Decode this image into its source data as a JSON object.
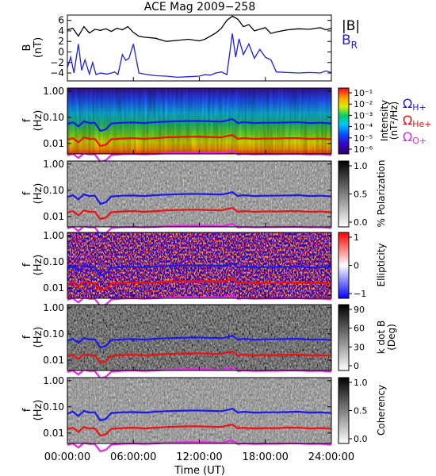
{
  "title": "ACE Mag 2009−258",
  "colors": {
    "B": "#000000",
    "BR": "#1f1fe0",
    "H": "#1a1aee",
    "He": "#ee1111",
    "O": "#ee22ee"
  },
  "legend": {
    "B_label": "|B|",
    "BR_main": "B",
    "BR_sub": "R",
    "omega": "Ω",
    "H_sub": "H+",
    "He_sub": "He+",
    "O_sub": "O+"
  },
  "x_axis": {
    "label": "Time (UT)",
    "ticks": [
      "00:00:00",
      "06:00:00",
      "12:00:00",
      "18:00:00",
      "24:00:00"
    ]
  },
  "panel1": {
    "ylabel_main": "B",
    "ylabel_unit": "(nT)",
    "yticks": [
      "6",
      "4",
      "2",
      "0",
      "−2",
      "−4"
    ]
  },
  "freq_panels": {
    "ylabel_main": "f",
    "ylabel_unit": "(Hz)",
    "yticks": [
      "1.00",
      "0.10",
      "0.01"
    ]
  },
  "colorbars": {
    "intensity": {
      "title": "Intensity",
      "unit": "(nT²/Hz)",
      "ticks": [
        "10⁻¹",
        "10⁻²",
        "10⁻³",
        "10⁻⁴",
        "10⁻⁵",
        "10⁻⁶"
      ]
    },
    "polarization": {
      "title": "% Polarization",
      "ticks": [
        "1.0",
        "0.5",
        "0.0"
      ]
    },
    "ellipticity": {
      "title": "Ellipticity",
      "ticks": [
        "1",
        "0",
        "−1"
      ]
    },
    "kdotb": {
      "title": "k dot B",
      "unit": "(Deg)",
      "ticks": [
        "90",
        "60",
        "30",
        "0"
      ]
    },
    "coherency": {
      "title": "Coherency",
      "ticks": [
        "1.0",
        "0.5",
        "0.0"
      ]
    }
  },
  "chart_data": {
    "type": "line",
    "x_unit": "hours UT",
    "xlim": [
      0,
      24
    ],
    "panel1": {
      "ylim": [
        -5.5,
        7
      ],
      "series": [
        {
          "name": "|B|",
          "x": [
            0,
            0.5,
            1,
            1.5,
            2,
            2.5,
            3,
            3.5,
            4,
            4.5,
            5,
            5.5,
            6,
            6.5,
            7,
            8,
            9,
            10,
            11,
            12,
            12.5,
            13,
            13.5,
            14,
            14.5,
            15,
            15.5,
            16,
            16.5,
            17,
            17.5,
            18,
            18.5,
            19,
            20,
            21,
            22,
            23,
            23.5,
            24
          ],
          "y": [
            4.2,
            4.5,
            3.0,
            4.8,
            3.6,
            4.3,
            4.1,
            4.4,
            3.9,
            4.5,
            4.2,
            4.8,
            3.7,
            3.0,
            2.8,
            2.6,
            2.0,
            2.2,
            2.4,
            2.1,
            2.4,
            3.0,
            3.6,
            4.5,
            6.0,
            6.8,
            6.2,
            4.8,
            5.2,
            4.0,
            4.3,
            4.6,
            3.5,
            3.8,
            4.2,
            4.4,
            4.3,
            4.6,
            4.2,
            4.5
          ]
        },
        {
          "name": "B_R",
          "x": [
            0,
            0.3,
            0.6,
            1,
            1.3,
            1.6,
            2,
            2.3,
            2.6,
            3,
            3.3,
            3.6,
            4,
            4.3,
            4.6,
            5,
            5.3,
            5.6,
            6,
            6.5,
            7,
            8,
            9,
            10,
            11,
            12,
            12.5,
            13,
            13.5,
            14,
            14.5,
            15,
            15.3,
            15.6,
            16,
            16.5,
            17,
            17.5,
            18,
            18.5,
            19,
            20,
            21,
            22,
            23,
            23.5,
            24
          ],
          "y": [
            -3.0,
            -1.0,
            -4.0,
            1.5,
            -3.5,
            -1.5,
            -4.2,
            -2.0,
            -4.3,
            -4.0,
            -4.1,
            -4.2,
            -4.0,
            -3.8,
            -4.3,
            -0.5,
            -1.6,
            -1.2,
            1.5,
            -4.0,
            -4.2,
            -4.5,
            -4.6,
            -4.8,
            -4.7,
            -4.6,
            -4.3,
            -4.4,
            -4.0,
            -3.8,
            -4.3,
            3.5,
            -1.0,
            2.5,
            -0.5,
            1.5,
            -1.2,
            0.5,
            -1.0,
            -1.5,
            -3.8,
            -3.9,
            -4.0,
            -3.9,
            -4.0,
            -3.6,
            -3.9
          ]
        }
      ]
    },
    "freq_panels": {
      "yscale": "log",
      "ylim": [
        0.004,
        1.3
      ],
      "series": [
        {
          "name": "ΩH+",
          "x": [
            0,
            0.5,
            1,
            1.5,
            2,
            2.5,
            3,
            3.5,
            4,
            5,
            6,
            7,
            8,
            9,
            10,
            11,
            12,
            13,
            14,
            14.5,
            15,
            15.5,
            16,
            17,
            18,
            19,
            20,
            21,
            22,
            23,
            24
          ],
          "y": [
            0.055,
            0.065,
            0.045,
            0.07,
            0.06,
            0.062,
            0.03,
            0.035,
            0.058,
            0.062,
            0.063,
            0.06,
            0.065,
            0.068,
            0.07,
            0.072,
            0.072,
            0.07,
            0.068,
            0.075,
            0.085,
            0.06,
            0.065,
            0.06,
            0.062,
            0.062,
            0.063,
            0.065,
            0.06,
            0.062,
            0.058
          ]
        },
        {
          "name": "ΩHe+",
          "x": [
            0,
            0.5,
            1,
            1.5,
            2,
            2.5,
            3,
            3.5,
            4,
            5,
            6,
            7,
            8,
            9,
            10,
            11,
            12,
            13,
            14,
            14.5,
            15,
            15.5,
            16,
            17,
            18,
            19,
            20,
            21,
            22,
            23,
            24
          ],
          "y": [
            0.014,
            0.016,
            0.011,
            0.017,
            0.015,
            0.015,
            0.008,
            0.009,
            0.0145,
            0.0155,
            0.016,
            0.015,
            0.016,
            0.017,
            0.0175,
            0.018,
            0.018,
            0.0175,
            0.017,
            0.019,
            0.021,
            0.015,
            0.016,
            0.015,
            0.0155,
            0.0155,
            0.016,
            0.016,
            0.015,
            0.0155,
            0.0145
          ]
        },
        {
          "name": "ΩO+",
          "x": [
            0,
            0.5,
            1,
            1.5,
            2,
            2.5,
            3,
            3.5,
            4,
            5,
            6,
            7,
            8,
            9,
            10,
            11,
            12,
            13,
            14,
            14.5,
            15,
            15.5,
            16,
            17,
            18,
            19,
            20,
            21,
            22,
            23,
            24
          ],
          "y": [
            0.0035,
            0.004,
            0.0028,
            0.0042,
            0.0038,
            0.0038,
            0.002,
            0.0023,
            0.0036,
            0.0039,
            0.004,
            0.0038,
            0.004,
            0.0042,
            0.0044,
            0.0045,
            0.0045,
            0.0044,
            0.0042,
            0.0047,
            0.0053,
            0.0038,
            0.004,
            0.0038,
            0.0039,
            0.0039,
            0.004,
            0.004,
            0.0038,
            0.0039,
            0.0036
          ]
        }
      ]
    }
  }
}
